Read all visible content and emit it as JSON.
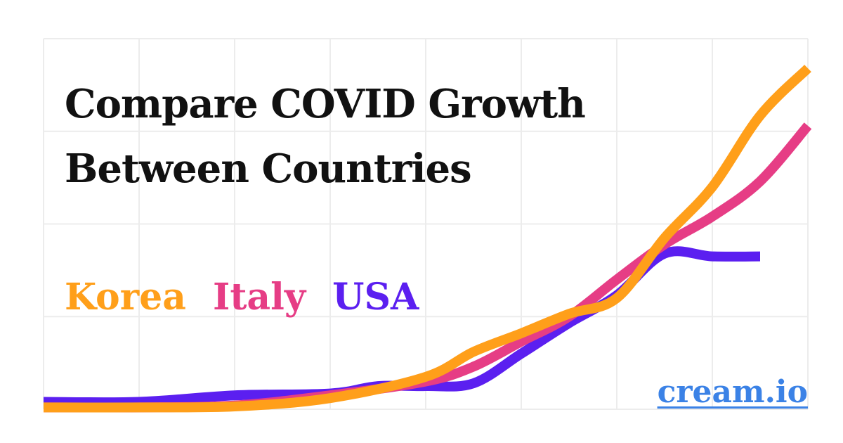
{
  "title": {
    "line1": "Compare COVID Growth",
    "line2": "Between Countries"
  },
  "legend": {
    "items": [
      {
        "label": "Korea",
        "color": "#ff9f1a"
      },
      {
        "label": "Italy",
        "color": "#e63d85"
      },
      {
        "label": "USA",
        "color": "#5b1ff0"
      }
    ]
  },
  "brand": {
    "label": "cream.io",
    "color": "#3b82e6"
  },
  "chart_data": {
    "type": "line",
    "title": "Compare COVID Growth Between Countries",
    "xlabel": "",
    "ylabel": "",
    "grid": true,
    "xlim": [
      0,
      8
    ],
    "ylim": [
      0,
      4
    ],
    "series": [
      {
        "name": "Korea",
        "color": "#ff9f1a",
        "points": [
          [
            0,
            0.02
          ],
          [
            1,
            0.02
          ],
          [
            2,
            0.03
          ],
          [
            3,
            0.12
          ],
          [
            4,
            0.35
          ],
          [
            4.5,
            0.62
          ],
          [
            5,
            0.82
          ],
          [
            5.5,
            1.03
          ],
          [
            6,
            1.2
          ],
          [
            6.5,
            1.85
          ],
          [
            7,
            2.4
          ],
          [
            7.5,
            3.17
          ],
          [
            8,
            3.68
          ]
        ]
      },
      {
        "name": "Italy",
        "color": "#e63d85",
        "points": [
          [
            0,
            0.02
          ],
          [
            1,
            0.02
          ],
          [
            2,
            0.04
          ],
          [
            3,
            0.15
          ],
          [
            4,
            0.3
          ],
          [
            4.5,
            0.46
          ],
          [
            5,
            0.73
          ],
          [
            5.5,
            1.0
          ],
          [
            6,
            1.4
          ],
          [
            6.5,
            1.78
          ],
          [
            7,
            2.08
          ],
          [
            7.5,
            2.46
          ],
          [
            8,
            3.06
          ]
        ]
      },
      {
        "name": "USA",
        "color": "#5b1ff0",
        "points": [
          [
            0,
            0.08
          ],
          [
            1,
            0.08
          ],
          [
            2,
            0.15
          ],
          [
            3,
            0.17
          ],
          [
            3.5,
            0.25
          ],
          [
            4,
            0.25
          ],
          [
            4.5,
            0.28
          ],
          [
            5,
            0.6
          ],
          [
            5.5,
            0.93
          ],
          [
            6,
            1.23
          ],
          [
            6.5,
            1.68
          ],
          [
            7,
            1.65
          ],
          [
            7.5,
            1.65
          ]
        ]
      }
    ]
  }
}
